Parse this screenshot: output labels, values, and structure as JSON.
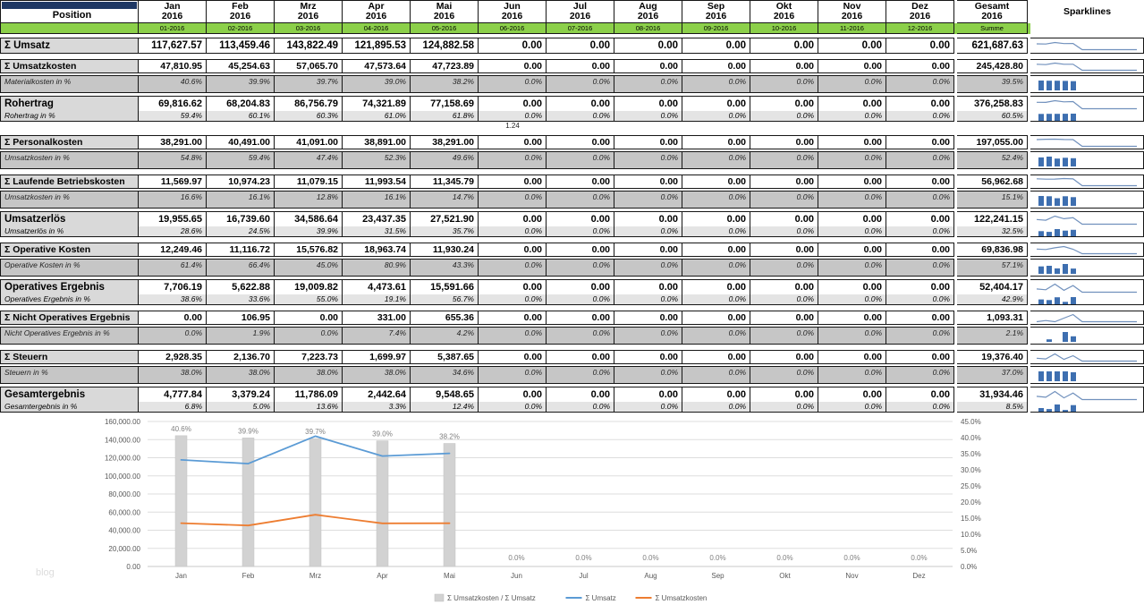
{
  "header": {
    "position_label": "Position",
    "sparklines_label": "Sparklines",
    "months": [
      {
        "name": "Jan",
        "year": "2016",
        "code": "01-2016"
      },
      {
        "name": "Feb",
        "year": "2016",
        "code": "02-2016"
      },
      {
        "name": "Mrz",
        "year": "2016",
        "code": "03-2016"
      },
      {
        "name": "Apr",
        "year": "2016",
        "code": "04-2016"
      },
      {
        "name": "Mai",
        "year": "2016",
        "code": "05-2016"
      },
      {
        "name": "Jun",
        "year": "2016",
        "code": "06-2016"
      },
      {
        "name": "Jul",
        "year": "2016",
        "code": "07-2016"
      },
      {
        "name": "Aug",
        "year": "2016",
        "code": "08-2016"
      },
      {
        "name": "Sep",
        "year": "2016",
        "code": "09-2016"
      },
      {
        "name": "Okt",
        "year": "2016",
        "code": "10-2016"
      },
      {
        "name": "Nov",
        "year": "2016",
        "code": "11-2016"
      },
      {
        "name": "Dez",
        "year": "2016",
        "code": "12-2016"
      }
    ],
    "total": {
      "name": "Gesamt",
      "year": "2016",
      "code": "Summe"
    }
  },
  "rows": [
    {
      "type": "sum",
      "size": "lg",
      "label": "Σ Umsatz",
      "values": [
        "117,627.57",
        "113,459.46",
        "143,822.49",
        "121,895.53",
        "124,882.58",
        "0.00",
        "0.00",
        "0.00",
        "0.00",
        "0.00",
        "0.00",
        "0.00"
      ],
      "total": "621,687.63"
    },
    {
      "type": "sum",
      "label": "Σ Umsatzkosten",
      "values": [
        "47,810.95",
        "45,254.63",
        "57,065.70",
        "47,573.64",
        "47,723.89",
        "0.00",
        "0.00",
        "0.00",
        "0.00",
        "0.00",
        "0.00",
        "0.00"
      ],
      "total": "245,428.80"
    },
    {
      "type": "pct",
      "label": "Materialkosten in %",
      "values": [
        "40.6%",
        "39.9%",
        "39.7%",
        "39.0%",
        "38.2%",
        "0.0%",
        "0.0%",
        "0.0%",
        "0.0%",
        "0.0%",
        "0.0%",
        "0.0%"
      ],
      "total": "39.5%"
    },
    {
      "type": "block",
      "label": "Rohertrag",
      "sublabel": "Rohertrag in %",
      "values": [
        "69,816.62",
        "68,204.83",
        "86,756.79",
        "74,321.89",
        "77,158.69",
        "0.00",
        "0.00",
        "0.00",
        "0.00",
        "0.00",
        "0.00",
        "0.00"
      ],
      "total": "376,258.83",
      "pct_values": [
        "59.4%",
        "60.1%",
        "60.3%",
        "61.0%",
        "61.8%",
        "0.0%",
        "0.0%",
        "0.0%",
        "0.0%",
        "0.0%",
        "0.0%",
        "0.0%"
      ],
      "pct_total": "60.5%"
    },
    {
      "type": "note",
      "col": 5,
      "text": "1.24"
    },
    {
      "type": "sum",
      "label": "Σ Personalkosten",
      "values": [
        "38,291.00",
        "40,491.00",
        "41,091.00",
        "38,891.00",
        "38,291.00",
        "0.00",
        "0.00",
        "0.00",
        "0.00",
        "0.00",
        "0.00",
        "0.00"
      ],
      "total": "197,055.00"
    },
    {
      "type": "pct",
      "label": "Umsatzkosten in %",
      "values": [
        "54.8%",
        "59.4%",
        "47.4%",
        "52.3%",
        "49.6%",
        "0.0%",
        "0.0%",
        "0.0%",
        "0.0%",
        "0.0%",
        "0.0%",
        "0.0%"
      ],
      "total": "52.4%"
    },
    {
      "type": "sum",
      "label": "Σ Laufende Betriebskosten",
      "values": [
        "11,569.97",
        "10,974.23",
        "11,079.15",
        "11,993.54",
        "11,345.79",
        "0.00",
        "0.00",
        "0.00",
        "0.00",
        "0.00",
        "0.00",
        "0.00"
      ],
      "total": "56,962.68"
    },
    {
      "type": "pct",
      "label": "Umsatzkosten in %",
      "values": [
        "16.6%",
        "16.1%",
        "12.8%",
        "16.1%",
        "14.7%",
        "0.0%",
        "0.0%",
        "0.0%",
        "0.0%",
        "0.0%",
        "0.0%",
        "0.0%"
      ],
      "total": "15.1%"
    },
    {
      "type": "block",
      "label": "Umsatzerlös",
      "sublabel": "Umsatzerlös in %",
      "values": [
        "19,955.65",
        "16,739.60",
        "34,586.64",
        "23,437.35",
        "27,521.90",
        "0.00",
        "0.00",
        "0.00",
        "0.00",
        "0.00",
        "0.00",
        "0.00"
      ],
      "total": "122,241.15",
      "pct_values": [
        "28.6%",
        "24.5%",
        "39.9%",
        "31.5%",
        "35.7%",
        "0.0%",
        "0.0%",
        "0.0%",
        "0.0%",
        "0.0%",
        "0.0%",
        "0.0%"
      ],
      "pct_total": "32.5%"
    },
    {
      "type": "sum",
      "label": "Σ Operative Kosten",
      "values": [
        "12,249.46",
        "11,116.72",
        "15,576.82",
        "18,963.74",
        "11,930.24",
        "0.00",
        "0.00",
        "0.00",
        "0.00",
        "0.00",
        "0.00",
        "0.00"
      ],
      "total": "69,836.98"
    },
    {
      "type": "pct",
      "label": "Operative Kosten in %",
      "values": [
        "61.4%",
        "66.4%",
        "45.0%",
        "80.9%",
        "43.3%",
        "0.0%",
        "0.0%",
        "0.0%",
        "0.0%",
        "0.0%",
        "0.0%",
        "0.0%"
      ],
      "total": "57.1%"
    },
    {
      "type": "block",
      "label": "Operatives Ergebnis",
      "sublabel": "Operatives Ergebnis in %",
      "values": [
        "7,706.19",
        "5,622.88",
        "19,009.82",
        "4,473.61",
        "15,591.66",
        "0.00",
        "0.00",
        "0.00",
        "0.00",
        "0.00",
        "0.00",
        "0.00"
      ],
      "total": "52,404.17",
      "pct_values": [
        "38.6%",
        "33.6%",
        "55.0%",
        "19.1%",
        "56.7%",
        "0.0%",
        "0.0%",
        "0.0%",
        "0.0%",
        "0.0%",
        "0.0%",
        "0.0%"
      ],
      "pct_total": "42.9%"
    },
    {
      "type": "sum",
      "label": "Σ Nicht Operatives Ergebnis",
      "values": [
        "0.00",
        "106.95",
        "0.00",
        "331.00",
        "655.36",
        "0.00",
        "0.00",
        "0.00",
        "0.00",
        "0.00",
        "0.00",
        "0.00"
      ],
      "total": "1,093.31"
    },
    {
      "type": "pct",
      "label": "Nicht Operatives Ergebnis in %",
      "values": [
        "0.0%",
        "1.9%",
        "0.0%",
        "7.4%",
        "4.2%",
        "0.0%",
        "0.0%",
        "0.0%",
        "0.0%",
        "0.0%",
        "0.0%",
        "0.0%"
      ],
      "total": "2.1%"
    },
    {
      "type": "sum",
      "label": "Σ Steuern",
      "values": [
        "2,928.35",
        "2,136.70",
        "7,223.73",
        "1,699.97",
        "5,387.65",
        "0.00",
        "0.00",
        "0.00",
        "0.00",
        "0.00",
        "0.00",
        "0.00"
      ],
      "total": "19,376.40"
    },
    {
      "type": "pct",
      "label": "Steuern in %",
      "values": [
        "38.0%",
        "38.0%",
        "38.0%",
        "38.0%",
        "34.6%",
        "0.0%",
        "0.0%",
        "0.0%",
        "0.0%",
        "0.0%",
        "0.0%",
        "0.0%"
      ],
      "total": "37.0%"
    },
    {
      "type": "block",
      "label": "Gesamtergebnis",
      "sublabel": "Gesamtergebnis in %",
      "values": [
        "4,777.84",
        "3,379.24",
        "11,786.09",
        "2,442.64",
        "9,548.65",
        "0.00",
        "0.00",
        "0.00",
        "0.00",
        "0.00",
        "0.00",
        "0.00"
      ],
      "total": "31,934.46",
      "pct_values": [
        "6.8%",
        "5.0%",
        "13.6%",
        "3.3%",
        "12.4%",
        "0.0%",
        "0.0%",
        "0.0%",
        "0.0%",
        "0.0%",
        "0.0%",
        "0.0%"
      ],
      "pct_total": "8.5%"
    }
  ],
  "chart_data": {
    "type": "combo",
    "categories": [
      "Jan",
      "Feb",
      "Mrz",
      "Apr",
      "Mai",
      "Jun",
      "Jul",
      "Aug",
      "Sep",
      "Okt",
      "Nov",
      "Dez"
    ],
    "series": [
      {
        "name": "Σ Umsatzkosten / Σ Umsatz",
        "kind": "bar",
        "axis": "right",
        "values": [
          40.6,
          39.9,
          39.7,
          39.0,
          38.2,
          0,
          0,
          0,
          0,
          0,
          0,
          0
        ],
        "labels": [
          "40.6%",
          "39.9%",
          "39.7%",
          "39.0%",
          "38.2%",
          "0.0%",
          "0.0%",
          "0.0%",
          "0.0%",
          "0.0%",
          "0.0%",
          "0.0%"
        ],
        "color": "#d2d2d2"
      },
      {
        "name": "Σ Umsatz",
        "kind": "line",
        "axis": "left",
        "values": [
          117627.57,
          113459.46,
          143822.49,
          121895.53,
          124882.58,
          null,
          null,
          null,
          null,
          null,
          null,
          null
        ],
        "color": "#5b9bd5"
      },
      {
        "name": "Σ Umsatzkosten",
        "kind": "line",
        "axis": "left",
        "values": [
          47810.95,
          45254.63,
          57065.7,
          47573.64,
          47723.89,
          null,
          null,
          null,
          null,
          null,
          null,
          null
        ],
        "color": "#ed7d31"
      }
    ],
    "left_axis": {
      "min": 0,
      "max": 160000,
      "step": 20000,
      "labels": [
        "0.00",
        "20,000.00",
        "40,000.00",
        "60,000.00",
        "80,000.00",
        "100,000.00",
        "120,000.00",
        "140,000.00",
        "160,000.00"
      ]
    },
    "right_axis": {
      "min": 0,
      "max": 45,
      "step": 5,
      "labels": [
        "0.0%",
        "5.0%",
        "10.0%",
        "15.0%",
        "20.0%",
        "25.0%",
        "30.0%",
        "35.0%",
        "40.0%",
        "45.0%"
      ]
    },
    "legend_position": "bottom",
    "grid": true
  },
  "watermark": "blog",
  "colors": {
    "green_band": "#8CD04A",
    "navy_accent": "#1F3864",
    "row_gray": "#D9D9D9",
    "pct_gray": "#C6C6C6",
    "spark_blue": "#3E6FB0",
    "spark_line": "#7191BD"
  }
}
